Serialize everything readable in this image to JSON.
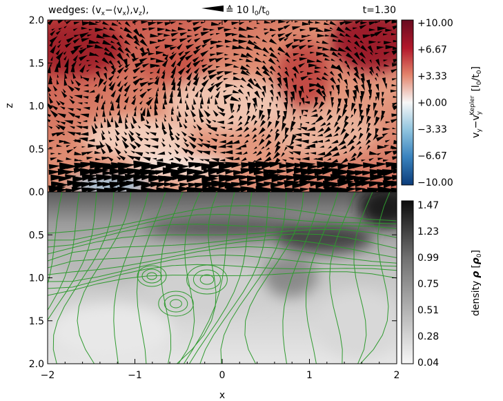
{
  "header": {
    "title_prefix": "wedges: (v",
    "title_sub_x": "x",
    "title_mid": "−⟨v",
    "title_sub_x2": "x",
    "title_mid2": "⟩,v",
    "title_sub_z": "z",
    "title_close": "),",
    "scale_equiv": "≙",
    "scale_value": "10 l",
    "scale_sub0": "0",
    "scale_slash": "/t",
    "scale_sub0b": "0",
    "time_label": "t=1.30"
  },
  "colors": {
    "vel_positive": "#a50f25",
    "vel_zero": "#f7f7f7",
    "vel_negative": "#1f65ad",
    "density_high": "#111111",
    "density_low": "#f4f4f4",
    "contour": "#2e9a2e",
    "wedge": "#000000"
  },
  "chart_data": [
    {
      "type": "heatmap",
      "panel": "top",
      "quantity": "azimuthal velocity deviation with velocity wedges",
      "xlim": [
        -2,
        2
      ],
      "ylim": [
        0,
        2
      ],
      "ylabel": "z",
      "yticks": [
        "0.0",
        "0.5",
        "1.0",
        "1.5",
        "2.0"
      ],
      "colorbar": {
        "label_main": "v",
        "label_sub_y": "y",
        "label_minus": "−v",
        "label_sub_y2": "y",
        "label_sup": "Kepler",
        "label_units": "[l",
        "label_units_sub": "0",
        "label_units_mid": "/t",
        "label_units_sub2": "0",
        "label_units_close": "]",
        "range": [
          -10,
          10
        ],
        "ticks": [
          "+10.00",
          "+6.67",
          "+3.33",
          "+0.00",
          "−3.33",
          "−6.67",
          "−10.00"
        ]
      },
      "wedge_reference": 10
    },
    {
      "type": "heatmap",
      "panel": "bottom",
      "quantity": "density with green field-line contours",
      "xlim": [
        -2,
        2
      ],
      "ylim": [
        2,
        0
      ],
      "xlabel": "x",
      "xticks": [
        "−2",
        "−1",
        "0",
        "1",
        "2"
      ],
      "yticks": [
        "0.5",
        "1.0",
        "1.5",
        "2.0"
      ],
      "colorbar": {
        "label_prefix": "density",
        "label_symbol": "ρ",
        "label_unit_open": "[",
        "label_unit": "ρ",
        "label_unit_sub": "0",
        "label_unit_close": "]",
        "range": [
          0.04,
          1.47
        ],
        "ticks": [
          "1.47",
          "1.23",
          "0.99",
          "0.75",
          "0.51",
          "0.28",
          "0.04"
        ]
      }
    }
  ]
}
